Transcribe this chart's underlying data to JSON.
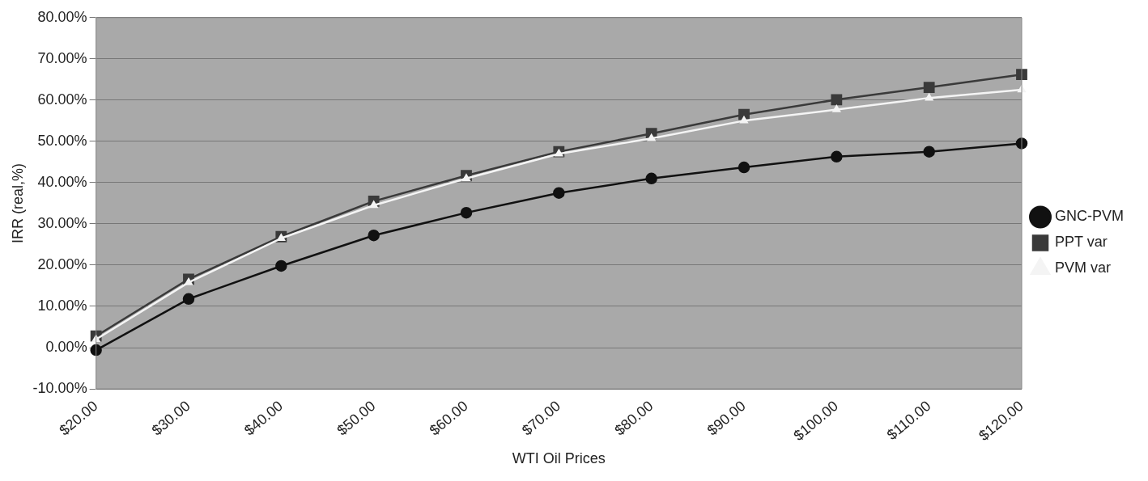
{
  "chart_data": {
    "type": "line",
    "xlabel": "WTI Oil Prices",
    "ylabel": "IRR (real,%)",
    "categories": [
      "$20.00",
      "$30.00",
      "$40.00",
      "$50.00",
      "$60.00",
      "$70.00",
      "$80.00",
      "$90.00",
      "$100.00",
      "$110.00",
      "$120.00"
    ],
    "series": [
      {
        "name": "GNC-PVM",
        "color": "#111111",
        "marker": "circle",
        "values": [
          -0.6,
          11.8,
          19.8,
          27.2,
          32.7,
          37.5,
          41,
          43.7,
          46.3,
          47.5,
          49.5
        ]
      },
      {
        "name": "PPT var",
        "color": "#3a3a3a",
        "marker": "square",
        "values": [
          2.8,
          16.6,
          26.9,
          35.5,
          41.7,
          47.5,
          51.9,
          56.5,
          60.1,
          63.1,
          66.2
        ]
      },
      {
        "name": "PVM var",
        "color": "#f4f4f4",
        "marker": "triangle",
        "values": [
          2,
          15.8,
          26.5,
          34.5,
          41,
          47,
          50.7,
          55,
          57.7,
          60.5,
          62.5
        ]
      }
    ],
    "ylim": [
      -10,
      80
    ],
    "yticks": [
      {
        "value": -10,
        "label": "-10.00%"
      },
      {
        "value": 0,
        "label": "0.00%"
      },
      {
        "value": 10,
        "label": "10.00%"
      },
      {
        "value": 20,
        "label": "20.00%"
      },
      {
        "value": 30,
        "label": "30.00%"
      },
      {
        "value": 40,
        "label": "40.00%"
      },
      {
        "value": 50,
        "label": "50.00%"
      },
      {
        "value": 60,
        "label": "60.00%"
      },
      {
        "value": 70,
        "label": "70.00%"
      },
      {
        "value": 80,
        "label": "80.00%"
      }
    ],
    "grid": "y",
    "legend": "right",
    "line_style": "solid"
  }
}
